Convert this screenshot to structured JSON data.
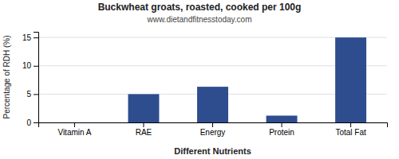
{
  "chart_data": {
    "type": "bar",
    "title": "Buckwheat groats, roasted, cooked per 100g",
    "subtitle": "www.dietandfitnesstoday.com",
    "xlabel": "Different Nutrients",
    "ylabel": "Percentage of RDH (%)",
    "categories": [
      "Vitamin A",
      "RAE",
      "Energy",
      "Protein",
      "Total Fat"
    ],
    "values": [
      0.0,
      5.0,
      6.3,
      1.2,
      15.0
    ],
    "color": "#2e4d8e",
    "ylim": [
      0,
      16
    ],
    "yticks": [
      0,
      5,
      10,
      15
    ],
    "grid": true
  }
}
